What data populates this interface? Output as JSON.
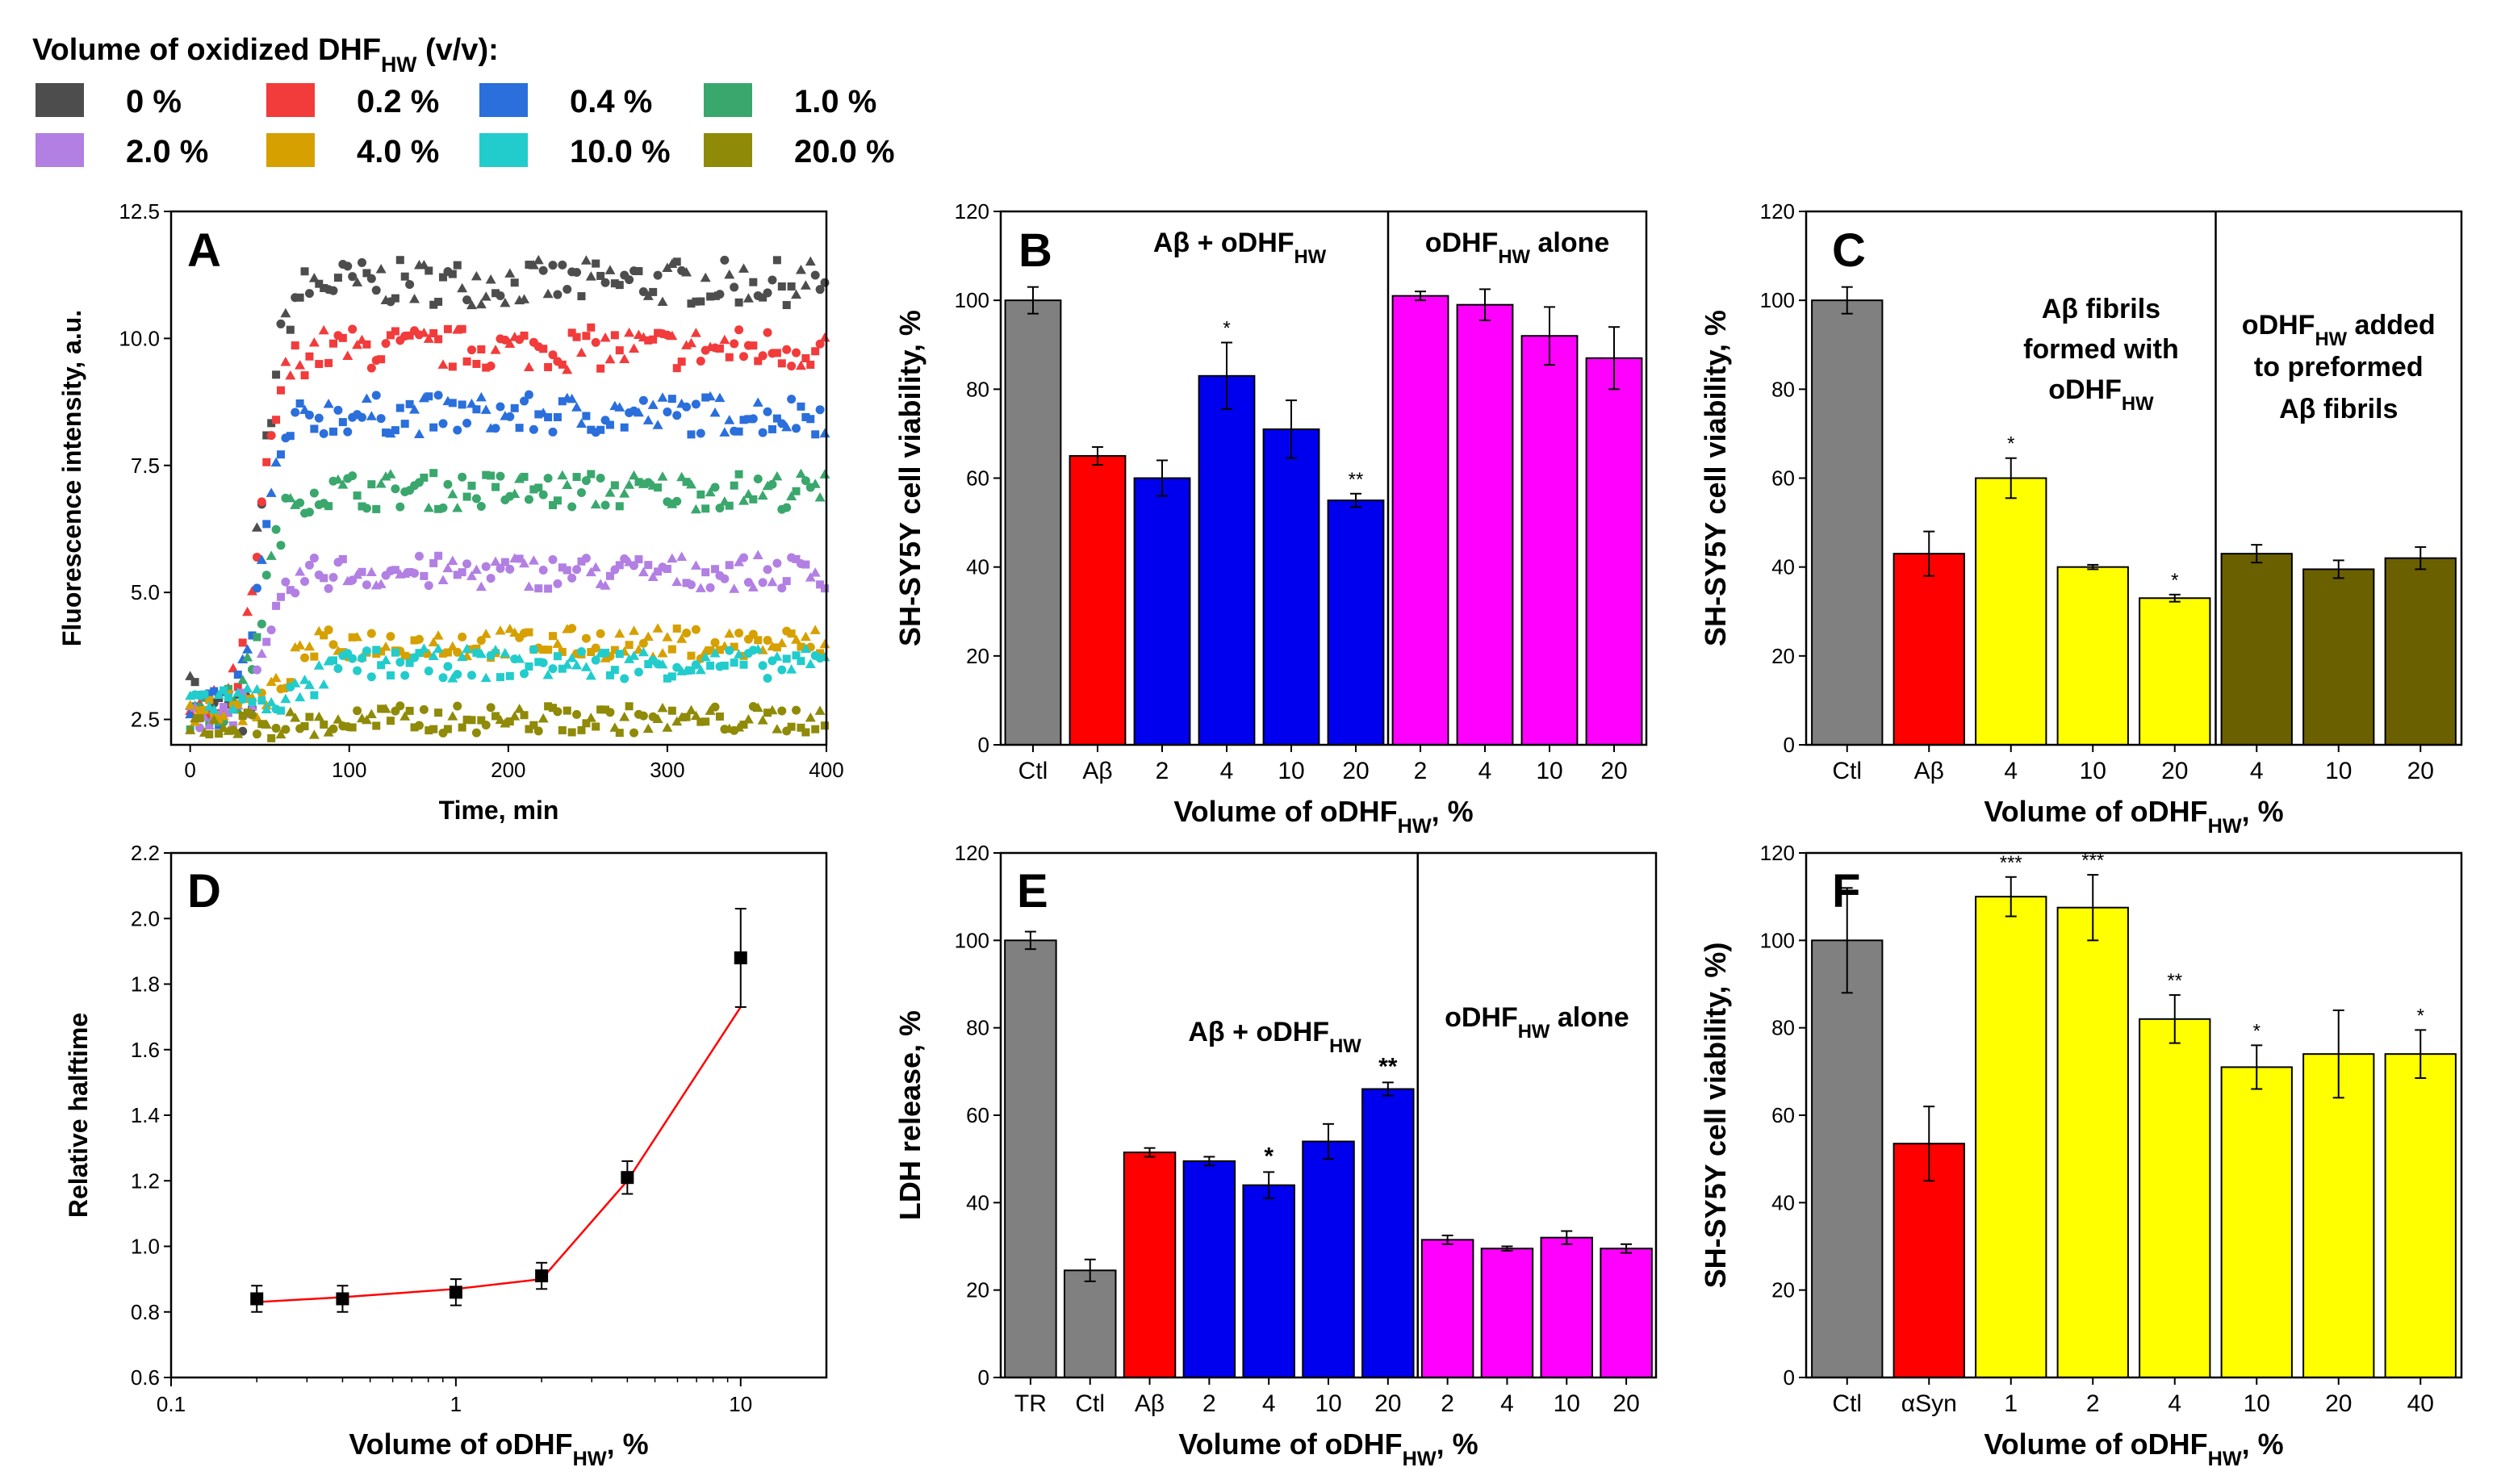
{
  "legend": {
    "title_main": "Volume of oxidized DHF",
    "title_sub": "HW",
    "title_tail": " (v/v):",
    "items": [
      {
        "label": "0 %",
        "color": "#4d4d4d"
      },
      {
        "label": "0.2 %",
        "color": "#f23b3b"
      },
      {
        "label": "0.4 %",
        "color": "#2a6fdb"
      },
      {
        "label": "1.0 %",
        "color": "#3aa76d"
      },
      {
        "label": "2.0 %",
        "color": "#b27fe3"
      },
      {
        "label": "4.0 %",
        "color": "#d6a000"
      },
      {
        "label": "10.0 %",
        "color": "#22cccc"
      },
      {
        "label": "20.0 %",
        "color": "#8f8a08"
      }
    ]
  },
  "chart_data": [
    {
      "panel": "A",
      "type": "scatter",
      "xlabel": "Time, min",
      "ylabel": "Fluorescence intensity, a.u.",
      "xlim": [
        -12,
        400
      ],
      "ylim": [
        2.0,
        12.5
      ],
      "xticks": [
        0,
        100,
        200,
        300,
        400
      ],
      "yticks": [
        2.5,
        5.0,
        7.5,
        10.0,
        12.5
      ],
      "series": [
        {
          "name": "0 %",
          "color": "#4d4d4d",
          "baseline": 2.6,
          "plateau": 11.1,
          "t_half": 45
        },
        {
          "name": "0.2 %",
          "color": "#f23b3b",
          "baseline": 2.6,
          "plateau": 9.8,
          "t_half": 44
        },
        {
          "name": "0.4 %",
          "color": "#2a6fdb",
          "baseline": 2.6,
          "plateau": 8.5,
          "t_half": 45
        },
        {
          "name": "1.0 %",
          "color": "#3aa76d",
          "baseline": 2.6,
          "plateau": 7.0,
          "t_half": 46
        },
        {
          "name": "2.0 %",
          "color": "#b27fe3",
          "baseline": 2.6,
          "plateau": 5.4,
          "t_half": 50
        },
        {
          "name": "4.0 %",
          "color": "#d6a000",
          "baseline": 2.7,
          "plateau": 4.0,
          "t_half": 60
        },
        {
          "name": "10.0 %",
          "color": "#22cccc",
          "baseline": 2.9,
          "plateau": 3.6,
          "t_half": 80
        },
        {
          "name": "20.0 %",
          "color": "#8f8a08",
          "baseline": 2.4,
          "plateau": 2.5,
          "t_half": 100
        }
      ]
    },
    {
      "panel": "B",
      "type": "bar",
      "ylabel": "SH-SY5Y cell viability, %",
      "xlabel_main": "Volume of oDHF",
      "xlabel_sub": "HW",
      "xlabel_tail": ", %",
      "ylim": [
        0,
        120
      ],
      "yticks": [
        0,
        20,
        40,
        60,
        80,
        100,
        120
      ],
      "divider_after": 6,
      "categories": [
        "Ctl",
        "Aβ",
        "2",
        "4",
        "10",
        "20",
        "2",
        "4",
        "10",
        "20"
      ],
      "values": [
        100,
        65,
        60,
        83,
        71,
        55,
        101,
        99,
        92,
        87
      ],
      "errors": [
        3,
        2,
        4,
        7.5,
        6.5,
        1.5,
        1,
        3.5,
        6.5,
        7
      ],
      "colors": [
        "#808080",
        "#ff0000",
        "#0000ee",
        "#0000ee",
        "#0000ee",
        "#0000ee",
        "#ff00ff",
        "#ff00ff",
        "#ff00ff",
        "#ff00ff"
      ],
      "stars": [
        "",
        "",
        "",
        "*",
        "",
        "**",
        "",
        "",
        "",
        ""
      ],
      "annotations": [
        {
          "main": "Aβ + oDHF",
          "sub": "HW",
          "tail": ""
        },
        {
          "main": "oDHF",
          "sub": "HW",
          "tail": " alone"
        }
      ]
    },
    {
      "panel": "C",
      "type": "bar",
      "ylabel": "SH-SY5Y cell viability, %",
      "xlabel_main": "Volume of oDHF",
      "xlabel_sub": "HW",
      "xlabel_tail": ", %",
      "ylim": [
        0,
        120
      ],
      "yticks": [
        0,
        20,
        40,
        60,
        80,
        100,
        120
      ],
      "divider_after": 5,
      "categories": [
        "Ctl",
        "Aβ",
        "4",
        "10",
        "20",
        "4",
        "10",
        "20"
      ],
      "values": [
        100,
        43,
        60,
        40,
        33,
        43,
        39.5,
        42
      ],
      "errors": [
        3,
        5,
        4.5,
        0.5,
        0.8,
        2,
        2,
        2.5
      ],
      "colors": [
        "#808080",
        "#ff0000",
        "#ffff00",
        "#ffff00",
        "#ffff00",
        "#6b6000",
        "#6b6000",
        "#6b6000"
      ],
      "stars": [
        "",
        "",
        "*",
        "",
        "*",
        "",
        "",
        ""
      ],
      "annotations": [
        {
          "line1": "Aβ fibrils",
          "line2": "formed with",
          "line3_main": "oDHF",
          "line3_sub": "HW"
        },
        {
          "line1_main": "oDHF",
          "line1_sub": "HW",
          "line1_tail": " added",
          "line2": "to preformed",
          "line3": "Aβ fibrils"
        }
      ]
    },
    {
      "panel": "D",
      "type": "line",
      "ylabel": "Relative halftime",
      "xlabel_main": "Volume of oDHF",
      "xlabel_sub": "HW",
      "xlabel_tail": ", %",
      "xscale": "log",
      "xlim": [
        0.1,
        20
      ],
      "ylim": [
        0.6,
        2.2
      ],
      "xticks": [
        0.1,
        1,
        10
      ],
      "xtick_labels": [
        "0.1",
        "1",
        "10"
      ],
      "yticks": [
        0.6,
        0.8,
        1.0,
        1.2,
        1.4,
        1.6,
        1.8,
        2.0,
        2.2
      ],
      "ytick_labels": [
        "0.6",
        "0.8",
        "1.0",
        "1.2",
        "1.4",
        "1.6",
        "1.8",
        "2.0",
        "2.2"
      ],
      "x": [
        0.2,
        0.4,
        1,
        2,
        4,
        10
      ],
      "y": [
        0.84,
        0.84,
        0.86,
        0.91,
        1.21,
        1.88
      ],
      "errors": [
        0.04,
        0.04,
        0.04,
        0.04,
        0.05,
        0.15
      ],
      "fit_x": [
        0.2,
        0.4,
        1,
        2,
        4,
        10
      ],
      "fit_y": [
        0.83,
        0.845,
        0.87,
        0.9,
        1.2,
        1.73
      ],
      "marker_color": "#000000",
      "line_color": "#ff0000"
    },
    {
      "panel": "E",
      "type": "bar",
      "ylabel": "LDH release, %",
      "xlabel_main": "Volume of oDHF",
      "xlabel_sub": "HW",
      "xlabel_tail": ", %",
      "ylim": [
        0,
        120
      ],
      "yticks": [
        0,
        20,
        40,
        60,
        80,
        100,
        120
      ],
      "divider_after": 7,
      "categories": [
        "TR",
        "Ctl",
        "Aβ",
        "2",
        "4",
        "10",
        "20",
        "2",
        "4",
        "10",
        "20"
      ],
      "values": [
        100,
        24.5,
        51.5,
        49.5,
        44,
        54,
        66,
        31.5,
        29.5,
        32,
        29.5
      ],
      "errors": [
        2,
        2.5,
        1,
        1,
        3,
        4,
        1.5,
        1,
        0.5,
        1.5,
        1
      ],
      "colors": [
        "#808080",
        "#808080",
        "#ff0000",
        "#0000ee",
        "#0000ee",
        "#0000ee",
        "#0000ee",
        "#ff00ff",
        "#ff00ff",
        "#ff00ff",
        "#ff00ff"
      ],
      "stars": [
        "",
        "",
        "",
        "",
        "*",
        "",
        "**",
        "",
        "",
        "",
        ""
      ],
      "annotations": [
        {
          "main": "Aβ + oDHF",
          "sub": "HW",
          "tail": ""
        },
        {
          "main": "oDHF",
          "sub": "HW",
          "tail": " alone"
        }
      ]
    },
    {
      "panel": "F",
      "type": "bar",
      "ylabel": "SH-SY5Y cell viability, %)",
      "xlabel_main": "Volume of oDHF",
      "xlabel_sub": "HW",
      "xlabel_tail": ", %",
      "ylim": [
        0,
        120
      ],
      "yticks": [
        0,
        20,
        40,
        60,
        80,
        100,
        120
      ],
      "categories": [
        "Ctl",
        "αSyn",
        "1",
        "2",
        "4",
        "10",
        "20",
        "40"
      ],
      "values": [
        100,
        53.5,
        110,
        107.5,
        82,
        71,
        74,
        74
      ],
      "errors": [
        12,
        8.5,
        4.5,
        7.5,
        5.5,
        5,
        10,
        5.5
      ],
      "colors": [
        "#808080",
        "#ff0000",
        "#ffff00",
        "#ffff00",
        "#ffff00",
        "#ffff00",
        "#ffff00",
        "#ffff00"
      ],
      "stars": [
        "",
        "",
        "***",
        "***",
        "**",
        "*",
        "",
        "*"
      ]
    }
  ]
}
